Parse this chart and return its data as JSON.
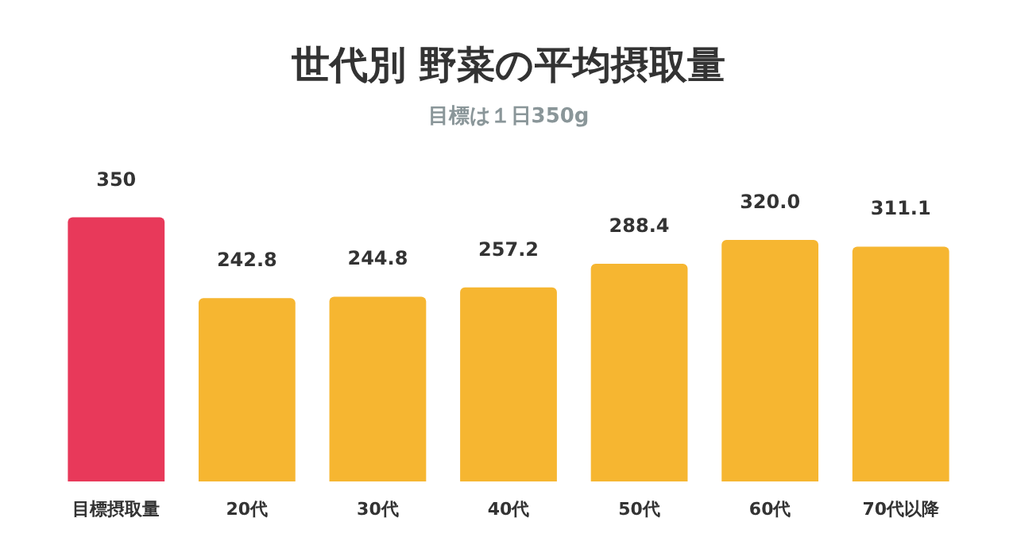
{
  "chart_data": {
    "type": "bar",
    "title": "世代別 野菜の平均摂取量",
    "subtitle": "目標は１日350g",
    "categories": [
      "目標摂取量",
      "20代",
      "30代",
      "40代",
      "50代",
      "60代",
      "70代以降"
    ],
    "values": [
      350,
      242.8,
      244.8,
      257.2,
      288.4,
      320.0,
      311.1
    ],
    "value_labels": [
      "350",
      "242.8",
      "244.8",
      "257.2",
      "288.4",
      "320.0",
      "311.1"
    ],
    "colors": [
      "#e8395a",
      "#f6b631",
      "#f6b631",
      "#f6b631",
      "#f6b631",
      "#f6b631",
      "#f6b631"
    ]
  }
}
